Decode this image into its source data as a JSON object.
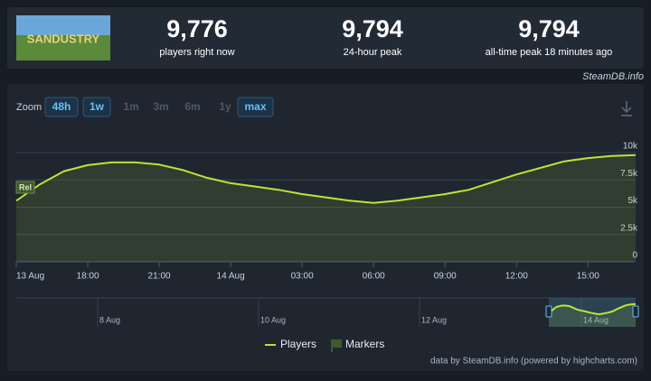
{
  "header": {
    "logo_text": "SANDUSTRY",
    "stats": [
      {
        "value": "9,776",
        "label": "players right now"
      },
      {
        "value": "9,794",
        "label": "24-hour peak"
      },
      {
        "value": "9,794",
        "label": "all-time peak 18 minutes ago"
      }
    ],
    "source": "SteamDB.info"
  },
  "zoom": {
    "label": "Zoom",
    "buttons": [
      "48h",
      "1w",
      "1m",
      "3m",
      "6m",
      "1y",
      "max"
    ],
    "active": [
      "48h",
      "1w",
      "max"
    ],
    "selected": "max"
  },
  "chart_data": {
    "type": "line",
    "x": [
      0,
      1,
      2,
      3,
      4,
      5,
      6,
      7,
      8,
      9,
      10,
      11,
      12,
      13,
      14,
      15,
      16,
      17,
      18,
      19,
      20,
      21,
      22,
      23,
      24,
      25,
      26
    ],
    "xlim": [
      0,
      26
    ],
    "xticks": [
      {
        "value": 0,
        "label": "13 Aug"
      },
      {
        "value": 3,
        "label": "18:00"
      },
      {
        "value": 6,
        "label": "21:00"
      },
      {
        "value": 9,
        "label": "14 Aug"
      },
      {
        "value": 12,
        "label": "03:00"
      },
      {
        "value": 15,
        "label": "06:00"
      },
      {
        "value": 18,
        "label": "09:00"
      },
      {
        "value": 21,
        "label": "12:00"
      },
      {
        "value": 24,
        "label": "15:00"
      }
    ],
    "ylim": [
      0,
      12400
    ],
    "yticks": [
      0,
      {
        "value": 2500,
        "label": "2.5k"
      },
      {
        "value": 5000,
        "label": "5k"
      },
      {
        "value": 7500,
        "label": "7.5k"
      },
      {
        "value": 10000,
        "label": "10k"
      }
    ],
    "grid": true,
    "series": [
      {
        "name": "Players",
        "color": "#b9e635",
        "values": [
          5600,
          7100,
          8300,
          8850,
          9100,
          9100,
          8900,
          8400,
          7700,
          7200,
          6900,
          6600,
          6200,
          5900,
          5600,
          5400,
          5600,
          5900,
          6200,
          6600,
          7300,
          8000,
          8600,
          9200,
          9500,
          9700,
          9776
        ]
      }
    ],
    "markers": {
      "name": "Markers",
      "color": "#3f5a2c",
      "items": [
        {
          "x": 0,
          "label": "Rel"
        }
      ]
    },
    "navigator_labels": [
      "8 Aug",
      "10 Aug",
      "12 Aug",
      "14 Aug"
    ],
    "credit": "data by SteamDB.info (powered by highcharts.com)"
  }
}
